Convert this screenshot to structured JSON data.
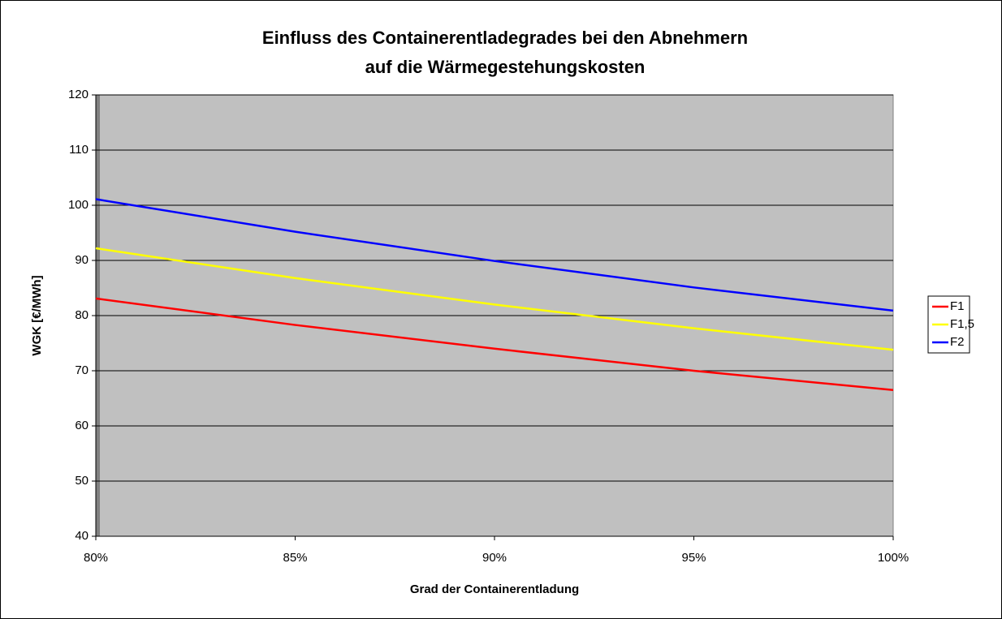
{
  "chart_data": {
    "type": "line",
    "title": [
      "Einfluss des Containerentladegrades bei den Abnehmern",
      "auf die Wärmegestehungskosten"
    ],
    "xlabel": "Grad der Containerentladung",
    "ylabel": "WGK [€/MWh]",
    "x": [
      80,
      85,
      90,
      95,
      100
    ],
    "series": [
      {
        "name": "F1",
        "color": "#ff0000",
        "values": [
          83.1,
          78.3,
          74.0,
          70.0,
          66.5
        ]
      },
      {
        "name": "F1,5",
        "color": "#ffff00",
        "values": [
          92.2,
          86.8,
          82.0,
          77.7,
          73.8
        ]
      },
      {
        "name": "F2",
        "color": "#0000ff",
        "values": [
          101.1,
          95.2,
          89.9,
          85.1,
          80.9
        ]
      }
    ],
    "xlim": [
      80,
      100
    ],
    "xticks": [
      {
        "value": 80,
        "label": "80%"
      },
      {
        "value": 85,
        "label": "85%"
      },
      {
        "value": 90,
        "label": "90%"
      },
      {
        "value": 95,
        "label": "95%"
      },
      {
        "value": 100,
        "label": "100%"
      }
    ],
    "ylim": [
      40,
      120
    ],
    "yticks": [
      40,
      50,
      60,
      70,
      80,
      90,
      100,
      110,
      120
    ],
    "grid": true,
    "legend": "right"
  }
}
